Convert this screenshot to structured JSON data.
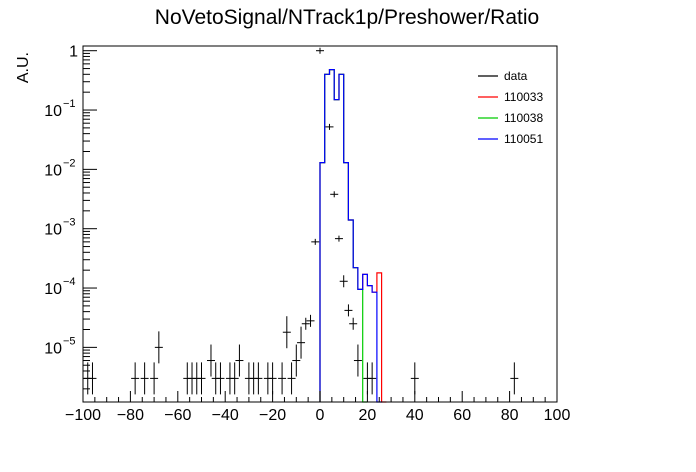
{
  "chart_data": {
    "type": "histogram",
    "title": "NoVetoSignal/NTrack1p/Preshower/Ratio",
    "xlabel": "",
    "ylabel": "A.U.",
    "xlim": [
      -100,
      100
    ],
    "ylim": [
      1.2e-06,
      1.2
    ],
    "yscale": "log",
    "x_ticks": [
      -100,
      -80,
      -60,
      -40,
      -20,
      0,
      20,
      40,
      60,
      80,
      100
    ],
    "x_tick_labels": [
      "−100",
      "−80",
      "−60",
      "−40",
      "−20",
      "0",
      "20",
      "40",
      "60",
      "80",
      "100"
    ],
    "y_ticks": [
      1e-05,
      0.0001,
      0.001,
      0.01,
      0.1,
      1
    ],
    "y_tick_labels": [
      {
        "base": "10",
        "exp": "−5"
      },
      {
        "base": "10",
        "exp": "−4"
      },
      {
        "base": "10",
        "exp": "−3"
      },
      {
        "base": "10",
        "exp": "−2"
      },
      {
        "base": "10",
        "exp": "−1"
      },
      {
        "base": "1",
        "exp": ""
      }
    ],
    "legend_position": "top-right",
    "legend": [
      {
        "label": "data",
        "color": "#000000"
      },
      {
        "label": "110033",
        "color": "#ff0000"
      },
      {
        "label": "110038",
        "color": "#00cc00"
      },
      {
        "label": "110051",
        "color": "#0000ff"
      }
    ],
    "data_points": [
      {
        "x": -98,
        "y": 3e-06
      },
      {
        "x": -96,
        "y": 3e-06
      },
      {
        "x": -78,
        "y": 3e-06
      },
      {
        "x": -74,
        "y": 3e-06
      },
      {
        "x": -70,
        "y": 3e-06
      },
      {
        "x": -68,
        "y": 1e-05
      },
      {
        "x": -56,
        "y": 3e-06
      },
      {
        "x": -54,
        "y": 3e-06
      },
      {
        "x": -52,
        "y": 3e-06
      },
      {
        "x": -50,
        "y": 3e-06
      },
      {
        "x": -46,
        "y": 6e-06
      },
      {
        "x": -44,
        "y": 3e-06
      },
      {
        "x": -42,
        "y": 3e-06
      },
      {
        "x": -38,
        "y": 3e-06
      },
      {
        "x": -36,
        "y": 3e-06
      },
      {
        "x": -34,
        "y": 6e-06
      },
      {
        "x": -30,
        "y": 3e-06
      },
      {
        "x": -28,
        "y": 3e-06
      },
      {
        "x": -26,
        "y": 3e-06
      },
      {
        "x": -22,
        "y": 3e-06
      },
      {
        "x": -20,
        "y": 3e-06
      },
      {
        "x": -16,
        "y": 3e-06
      },
      {
        "x": -14,
        "y": 1.8e-05
      },
      {
        "x": -12,
        "y": 3e-06
      },
      {
        "x": -10,
        "y": 6e-06
      },
      {
        "x": -8,
        "y": 1.2e-05
      },
      {
        "x": -6,
        "y": 2.5e-05
      },
      {
        "x": -4,
        "y": 2.8e-05
      },
      {
        "x": -2,
        "y": 0.0006
      },
      {
        "x": 0,
        "y": 1.0
      },
      {
        "x": 4,
        "y": 0.052
      },
      {
        "x": 6,
        "y": 0.0038
      },
      {
        "x": 8,
        "y": 0.00068
      },
      {
        "x": 10,
        "y": 0.00013
      },
      {
        "x": 12,
        "y": 4.2e-05
      },
      {
        "x": 14,
        "y": 2.5e-05
      },
      {
        "x": 16,
        "y": 6e-06
      },
      {
        "x": 20,
        "y": 3e-06
      },
      {
        "x": 22,
        "y": 3e-06
      },
      {
        "x": 40,
        "y": 3e-06
      },
      {
        "x": 82,
        "y": 3e-06
      }
    ],
    "series": [
      {
        "name": "110033",
        "color": "#ff0000",
        "bin_edges": [
          0,
          2,
          4,
          6,
          8,
          10,
          12,
          14,
          16,
          18,
          20,
          22,
          24,
          26,
          28
        ],
        "values": [
          0.013,
          0.4,
          0.48,
          0.15,
          0.4,
          0.013,
          0.0014,
          0.00022,
          9.5e-05,
          0.00017,
          0.00011,
          8.5e-05,
          0.00018,
          1.2e-06
        ]
      },
      {
        "name": "110038",
        "color": "#00cc00",
        "bin_edges": [
          0,
          2,
          4,
          6,
          8,
          10,
          12,
          14,
          16,
          18,
          20
        ],
        "values": [
          0.013,
          0.4,
          0.48,
          0.15,
          0.4,
          0.013,
          0.0014,
          0.00022,
          9.5e-05,
          1.2e-06
        ]
      },
      {
        "name": "110051",
        "color": "#0000ff",
        "bin_edges": [
          0,
          2,
          4,
          6,
          8,
          10,
          12,
          14,
          16,
          18,
          20,
          22,
          24,
          26
        ],
        "values": [
          0.013,
          0.4,
          0.48,
          0.15,
          0.4,
          0.013,
          0.0014,
          0.00022,
          9.5e-05,
          0.00017,
          0.00011,
          8.5e-05,
          1.2e-06
        ]
      }
    ]
  }
}
